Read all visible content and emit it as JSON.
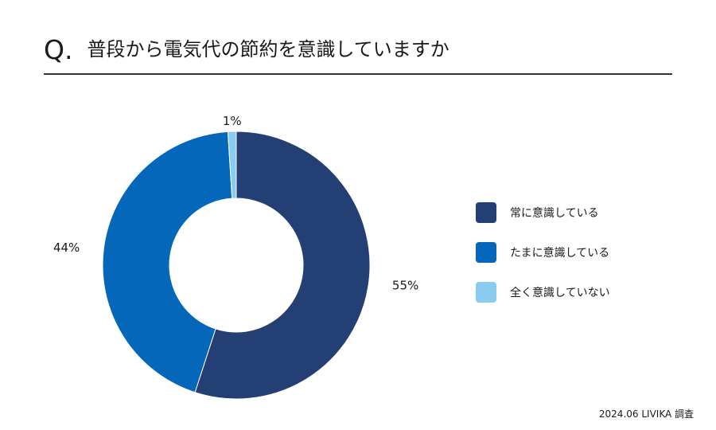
{
  "header": {
    "q_mark": "Q.",
    "title": "普段から電気代の節約を意識していますか"
  },
  "chart_data": {
    "type": "pie",
    "donut": true,
    "categories": [
      "常に意識している",
      "たまに意識している",
      "全く意識していない"
    ],
    "values": [
      55,
      44,
      1
    ],
    "labels": [
      "55%",
      "44%",
      "1%"
    ],
    "colors": [
      "#233f74",
      "#0567ba",
      "#8acbf0"
    ],
    "legend_position": "right"
  },
  "source": "2024.06 LIVIKA 調査"
}
